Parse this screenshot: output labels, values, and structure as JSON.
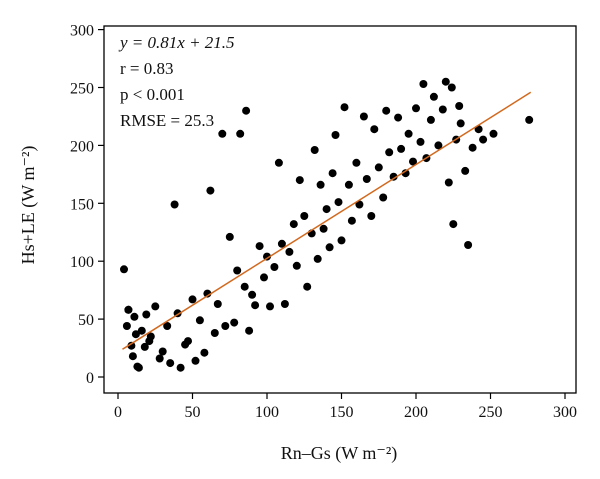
{
  "chart_data": {
    "type": "scatter",
    "xlabel": "Rn–Gs (W m⁻²)",
    "ylabel": "Hs+LE (W m⁻²)",
    "xlim": [
      0,
      300
    ],
    "ylim": [
      0,
      300
    ],
    "xticks": [
      "0",
      "50",
      "100",
      "150",
      "200",
      "250",
      "300"
    ],
    "yticks": [
      "0",
      "50",
      "100",
      "150",
      "200",
      "250",
      "300"
    ],
    "grid": false,
    "legend": "none",
    "point_color": "#000000",
    "fit_line": {
      "slope": 0.81,
      "intercept": 21.5,
      "x_range": [
        3,
        277
      ],
      "color": "#d2691e"
    },
    "annotations": {
      "equation": "y = 0.81x + 21.5",
      "r": "r = 0.83",
      "p": "p < 0.001",
      "rmse": "RMSE = 25.3"
    },
    "points": [
      [
        4,
        93
      ],
      [
        6,
        44
      ],
      [
        7,
        58
      ],
      [
        10,
        18
      ],
      [
        12,
        37
      ],
      [
        14,
        8
      ],
      [
        18,
        26
      ],
      [
        22,
        35
      ],
      [
        25,
        61
      ],
      [
        28,
        16
      ],
      [
        30,
        22
      ],
      [
        33,
        44
      ],
      [
        35,
        12
      ],
      [
        38,
        149
      ],
      [
        40,
        55
      ],
      [
        42,
        8
      ],
      [
        45,
        28
      ],
      [
        47,
        31
      ],
      [
        50,
        67
      ],
      [
        52,
        14
      ],
      [
        55,
        49
      ],
      [
        58,
        21
      ],
      [
        60,
        72
      ],
      [
        62,
        161
      ],
      [
        65,
        38
      ],
      [
        67,
        63
      ],
      [
        70,
        210
      ],
      [
        72,
        44
      ],
      [
        75,
        121
      ],
      [
        78,
        47
      ],
      [
        80,
        92
      ],
      [
        82,
        210
      ],
      [
        85,
        78
      ],
      [
        86,
        230
      ],
      [
        88,
        40
      ],
      [
        90,
        71
      ],
      [
        92,
        62
      ],
      [
        95,
        113
      ],
      [
        98,
        86
      ],
      [
        100,
        104
      ],
      [
        102,
        61
      ],
      [
        105,
        95
      ],
      [
        108,
        185
      ],
      [
        110,
        115
      ],
      [
        112,
        63
      ],
      [
        115,
        108
      ],
      [
        118,
        132
      ],
      [
        120,
        96
      ],
      [
        122,
        170
      ],
      [
        125,
        139
      ],
      [
        127,
        78
      ],
      [
        130,
        124
      ],
      [
        132,
        196
      ],
      [
        134,
        102
      ],
      [
        136,
        166
      ],
      [
        138,
        128
      ],
      [
        140,
        145
      ],
      [
        142,
        112
      ],
      [
        144,
        176
      ],
      [
        146,
        209
      ],
      [
        148,
        151
      ],
      [
        150,
        118
      ],
      [
        152,
        233
      ],
      [
        155,
        166
      ],
      [
        157,
        135
      ],
      [
        160,
        185
      ],
      [
        162,
        149
      ],
      [
        165,
        225
      ],
      [
        167,
        171
      ],
      [
        170,
        139
      ],
      [
        172,
        214
      ],
      [
        175,
        181
      ],
      [
        178,
        155
      ],
      [
        180,
        230
      ],
      [
        182,
        194
      ],
      [
        185,
        173
      ],
      [
        188,
        224
      ],
      [
        190,
        197
      ],
      [
        193,
        176
      ],
      [
        195,
        210
      ],
      [
        198,
        186
      ],
      [
        200,
        232
      ],
      [
        203,
        203
      ],
      [
        205,
        253
      ],
      [
        207,
        189
      ],
      [
        210,
        222
      ],
      [
        212,
        242
      ],
      [
        215,
        200
      ],
      [
        218,
        231
      ],
      [
        220,
        255
      ],
      [
        222,
        168
      ],
      [
        224,
        250
      ],
      [
        225,
        132
      ],
      [
        227,
        205
      ],
      [
        229,
        234
      ],
      [
        230,
        219
      ],
      [
        233,
        178
      ],
      [
        235,
        114
      ],
      [
        238,
        198
      ],
      [
        242,
        214
      ],
      [
        245,
        205
      ],
      [
        252,
        210
      ],
      [
        276,
        222
      ],
      [
        7,
        58
      ],
      [
        9,
        27
      ],
      [
        11,
        52
      ],
      [
        13,
        9
      ],
      [
        16,
        40
      ],
      [
        19,
        54
      ],
      [
        21,
        31
      ]
    ]
  }
}
